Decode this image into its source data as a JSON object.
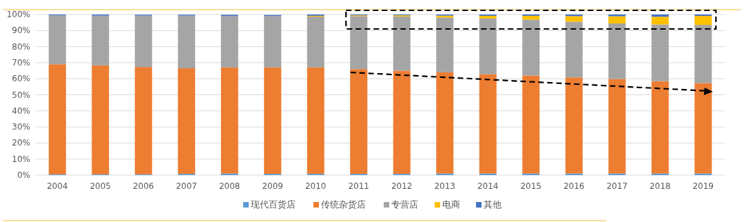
{
  "chart_data": {
    "type": "bar",
    "stacked": true,
    "grid": "y",
    "legend": "bottom",
    "categories": [
      "2004",
      "2005",
      "2006",
      "2007",
      "2008",
      "2009",
      "2010",
      "2011",
      "2012",
      "2013",
      "2014",
      "2015",
      "2016",
      "2017",
      "2018",
      "2019"
    ],
    "ylim": [
      0,
      100
    ],
    "yticks": [
      {
        "value": 0,
        "label": "0%"
      },
      {
        "value": 10,
        "label": "10%"
      },
      {
        "value": 20,
        "label": "20%"
      },
      {
        "value": 30,
        "label": "30%"
      },
      {
        "value": 40,
        "label": "40%"
      },
      {
        "value": 50,
        "label": "50%"
      },
      {
        "value": 60,
        "label": "60%"
      },
      {
        "value": 70,
        "label": "70%"
      },
      {
        "value": 80,
        "label": "80%"
      },
      {
        "value": 90,
        "label": "90%"
      },
      {
        "value": 100,
        "label": "100%"
      }
    ],
    "series": [
      {
        "name": "现代百货店",
        "color": "#5b9bd5",
        "values": [
          0.5,
          0.5,
          0.5,
          0.8,
          1,
          0.8,
          0.8,
          0.8,
          0.8,
          1,
          1,
          1,
          1,
          1,
          1,
          1
        ]
      },
      {
        "name": "传统杂货店",
        "color": "#ed7d31",
        "values": [
          68.5,
          67.8,
          66.8,
          65.7,
          66,
          66.2,
          66.2,
          65.2,
          64.2,
          63,
          61.8,
          61,
          59.8,
          58.8,
          57.5,
          56.3
        ]
      },
      {
        "name": "专营店",
        "color": "#a5a5a5",
        "values": [
          30.5,
          31,
          32,
          32.8,
          32,
          32,
          31.7,
          33,
          33.8,
          34.1,
          34.7,
          34.8,
          34.7,
          34.6,
          35.3,
          36.2
        ]
      },
      {
        "name": "电商",
        "color": "#ffc000",
        "values": [
          null,
          null,
          null,
          null,
          null,
          null,
          0.5,
          0.5,
          0.7,
          1.2,
          1.7,
          2.4,
          3.5,
          4.5,
          4.8,
          5.6
        ]
      },
      {
        "name": "其他",
        "color": "#4472c4",
        "values": [
          0.5,
          0.7,
          0.6,
          0.6,
          0.8,
          0.7,
          0.8,
          0.5,
          0.5,
          0.7,
          0.8,
          0.8,
          1,
          1.1,
          1.4,
          0.9
        ]
      }
    ]
  }
}
